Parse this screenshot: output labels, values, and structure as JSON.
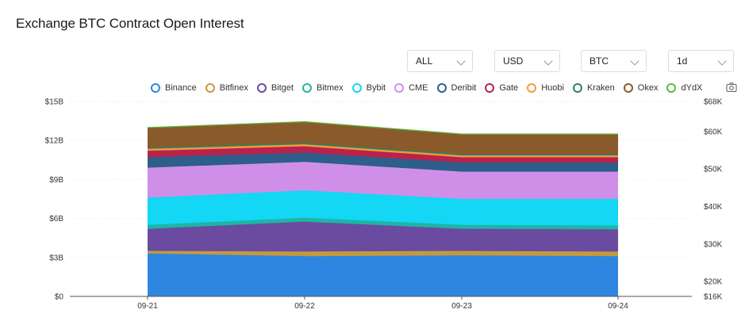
{
  "title": "Exchange BTC Contract Open Interest",
  "controls": [
    {
      "value": "ALL"
    },
    {
      "value": "USD"
    },
    {
      "value": "BTC"
    },
    {
      "value": "1d"
    }
  ],
  "chart_data": {
    "type": "area",
    "stacked": true,
    "x": [
      "09-21",
      "09-22",
      "09-23",
      "09-24"
    ],
    "y_left": {
      "ticks": [
        "$0",
        "$3B",
        "$6B",
        "$9B",
        "$12B",
        "$15B"
      ],
      "range": [
        0,
        15
      ]
    },
    "y_right": {
      "ticks": [
        "$16K",
        "$20K",
        "$30K",
        "$40K",
        "$50K",
        "$60K",
        "$68K"
      ],
      "range": [
        16,
        68
      ]
    },
    "legend_position": "top",
    "series": [
      {
        "name": "Binance",
        "color": "#2f86e0",
        "values": [
          3.3,
          3.1,
          3.15,
          3.1
        ]
      },
      {
        "name": "Bitfinex",
        "color": "#c59a3c",
        "values": [
          0.2,
          0.35,
          0.35,
          0.35
        ]
      },
      {
        "name": "Bitget",
        "color": "#6a4ba0",
        "values": [
          1.7,
          2.3,
          1.7,
          1.7
        ]
      },
      {
        "name": "Bitmex",
        "color": "#1fb5a5",
        "values": [
          0.3,
          0.3,
          0.3,
          0.3
        ]
      },
      {
        "name": "Bybit",
        "color": "#14d6f5",
        "values": [
          2.1,
          2.1,
          2.0,
          2.05
        ]
      },
      {
        "name": "CME",
        "color": "#cf8fe8",
        "values": [
          2.3,
          2.2,
          2.1,
          2.1
        ]
      },
      {
        "name": "Deribit",
        "color": "#2e5e8a",
        "values": [
          0.8,
          0.7,
          0.7,
          0.7
        ]
      },
      {
        "name": "Gate",
        "color": "#b8234e",
        "values": [
          0.5,
          0.5,
          0.4,
          0.4
        ]
      },
      {
        "name": "Huobi",
        "color": "#f59a2e",
        "values": [
          0.15,
          0.15,
          0.15,
          0.15
        ]
      },
      {
        "name": "Kraken",
        "color": "#2f7f6c",
        "values": [
          0.1,
          0.1,
          0.1,
          0.1
        ]
      },
      {
        "name": "Okex",
        "color": "#8a5a2b",
        "values": [
          1.5,
          1.6,
          1.5,
          1.5
        ]
      },
      {
        "name": "dYdX",
        "color": "#5fb83f",
        "values": [
          0.05,
          0.05,
          0.05,
          0.05
        ]
      }
    ]
  }
}
